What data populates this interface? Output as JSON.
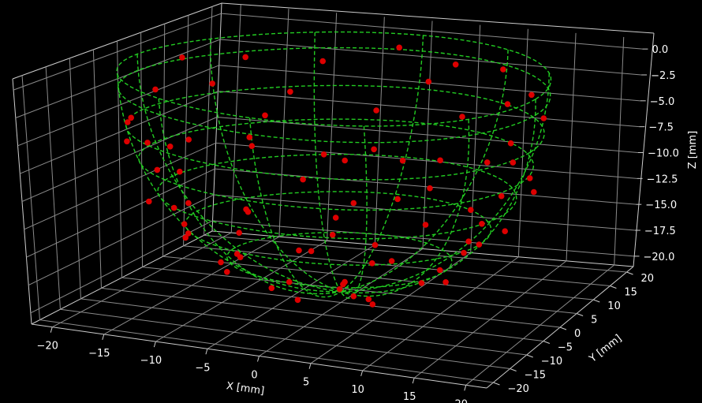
{
  "chart_data": {
    "type": "scatter3d",
    "background": "#000000",
    "grid": true,
    "axes": {
      "x": {
        "label": "X [mm]",
        "range": [
          -22,
          22
        ],
        "ticks": [
          -20,
          -15,
          -10,
          -5,
          0,
          5,
          10,
          15,
          20
        ]
      },
      "y": {
        "label": "Y [mm]",
        "range": [
          -22,
          22
        ],
        "ticks": [
          -20,
          -15,
          -10,
          -5,
          0,
          5,
          10,
          15,
          20
        ]
      },
      "z": {
        "label": "Z [mm]",
        "range": [
          -21,
          1
        ],
        "ticks": [
          0.0,
          -2.5,
          -5.0,
          -7.5,
          -10.0,
          -12.5,
          -15.0,
          -17.5,
          -20.0
        ],
        "tick_labels": [
          "0.0",
          "−2.5",
          "−5.0",
          "−7.5",
          "−10.0",
          "−12.5",
          "−15.0",
          "−17.5",
          "−20.0"
        ]
      }
    },
    "colors": {
      "mesh": "#22cc22",
      "points": "#dd0000",
      "grid": "#8a8a8a",
      "pane_edge": "#cccccc"
    },
    "surface": {
      "shape": "hemisphere-bowl",
      "style": "dashed-wireframe",
      "center": [
        0,
        0,
        0
      ],
      "radius": 20,
      "latitudes_z": [
        0,
        -1.5,
        -5,
        -8,
        -11,
        -14,
        -17
      ],
      "meridian_count": 12
    },
    "series": [
      {
        "type": "scatter",
        "points": [
          [
            -18.4,
            6.2,
            -1.2
          ],
          [
            -14.6,
            11.9,
            -1.8
          ],
          [
            -8.7,
            16.4,
            -2.5
          ],
          [
            -2.3,
            19.7,
            -1.3
          ],
          [
            3.7,
            19.5,
            -2.4
          ],
          [
            9.6,
            17.2,
            -1.9
          ],
          [
            14.8,
            11.8,
            -2.7
          ],
          [
            18.5,
            5.7,
            -3.2
          ],
          [
            17.7,
            -6.8,
            -4.6
          ],
          [
            12.6,
            -14.9,
            -3.3
          ],
          [
            6.5,
            -18.8,
            -2.7
          ],
          [
            -0.2,
            -19.9,
            -1.8
          ],
          [
            -6.8,
            -18.5,
            -3.1
          ],
          [
            -12.6,
            -14.6,
            -4.8
          ],
          [
            -18.1,
            -6.9,
            -6.7
          ],
          [
            -19.5,
            2.7,
            -3.7
          ],
          [
            -11.4,
            15.1,
            -5.4
          ],
          [
            -3.9,
            18.4,
            -7.2
          ],
          [
            5.3,
            17.7,
            -6.9
          ],
          [
            12.1,
            13.4,
            -7.9
          ],
          [
            17.3,
            5.1,
            -8.8
          ],
          [
            16.7,
            -6.2,
            -10.5
          ],
          [
            9.3,
            -14.7,
            -11.4
          ],
          [
            -1.7,
            -17.9,
            -9.1
          ],
          [
            -10.1,
            -15.2,
            -10.3
          ],
          [
            -15.4,
            -8.6,
            -11.6
          ],
          [
            -17.9,
            2.3,
            -8.8
          ],
          [
            -13.7,
            11.6,
            -10.1
          ],
          [
            -6.2,
            16.5,
            -11.8
          ],
          [
            3.4,
            17.1,
            -11.1
          ],
          [
            11.8,
            11.9,
            -12.6
          ],
          [
            15.6,
            2.8,
            -13.4
          ],
          [
            13.1,
            -8.2,
            -14.7
          ],
          [
            5.6,
            -13.9,
            -15.6
          ],
          [
            -4.4,
            -14.6,
            -13.9
          ],
          [
            -11.2,
            -10.3,
            -14.1
          ],
          [
            -14.8,
            -1.9,
            -14.9
          ],
          [
            -12.4,
            7.3,
            -15.1
          ],
          [
            -5.5,
            12.8,
            -16.4
          ],
          [
            3.8,
            12.6,
            -16.2
          ],
          [
            9.7,
            7.4,
            -17.1
          ],
          [
            11.4,
            -2.2,
            -17.4
          ],
          [
            6.3,
            -9.3,
            -17.9
          ],
          [
            -2.7,
            -10.8,
            -17.6
          ],
          [
            -8.9,
            -6.2,
            -17.8
          ],
          [
            -10.6,
            1.4,
            -18.2
          ],
          [
            -6.1,
            8.1,
            -18.6
          ],
          [
            1.6,
            9.4,
            -19.1
          ],
          [
            6.7,
            3.9,
            -19.4
          ],
          [
            4.9,
            -4.6,
            -19.6
          ],
          [
            -2.1,
            -5.8,
            -19.7
          ],
          [
            -5.4,
            0.6,
            -19.8
          ],
          [
            -0.8,
            3.2,
            -19.9
          ],
          [
            1.7,
            -1.1,
            -20.0
          ],
          [
            -16.9,
            9.6,
            -4.1
          ],
          [
            -8.2,
            -17.8,
            -6.3
          ],
          [
            8.4,
            -17.1,
            -7.2
          ],
          [
            18.1,
            -1.3,
            -5.8
          ],
          [
            -19.1,
            -3.6,
            -5.2
          ],
          [
            0.9,
            19.6,
            -4.3
          ],
          [
            14.2,
            -12.6,
            -6.1
          ],
          [
            -13.4,
            13.9,
            -7.6
          ],
          [
            10.6,
            16.1,
            -4.9
          ],
          [
            -15.9,
            -11.4,
            -3.9
          ],
          [
            16.1,
            9.3,
            -11.2
          ],
          [
            -9.3,
            13.7,
            -13.3
          ],
          [
            7.9,
            -12.1,
            -13.8
          ],
          [
            -13.1,
            -4.8,
            -12.2
          ],
          [
            12.3,
            4.6,
            -15.4
          ],
          [
            -3.1,
            16.2,
            -10.4
          ],
          [
            -17.3,
            -2.1,
            -10.1
          ],
          [
            2.4,
            -16.3,
            -12.4
          ],
          [
            -9.6,
            -13.4,
            -12.9
          ],
          [
            14.6,
            -4.3,
            -12.8
          ],
          [
            0.3,
            14.1,
            -14.4
          ],
          [
            -7.4,
            -11.3,
            -15.7
          ],
          [
            9.1,
            10.8,
            -13.9
          ],
          [
            -11.8,
            4.1,
            -16.6
          ],
          [
            4.2,
            -11.2,
            -16.8
          ],
          [
            -4.6,
            9.8,
            -17.3
          ]
        ]
      }
    ]
  }
}
